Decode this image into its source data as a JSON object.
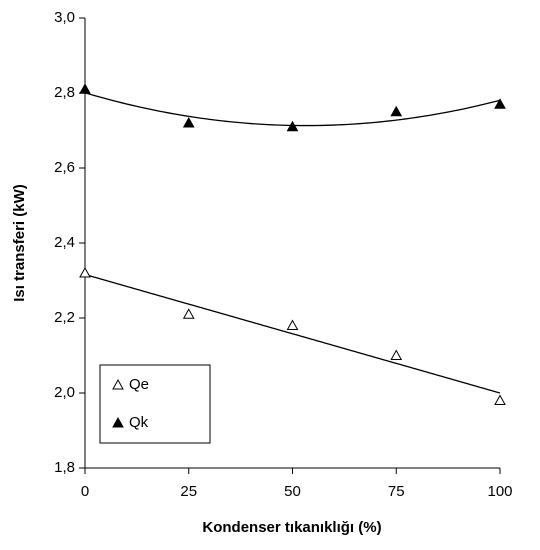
{
  "chart_data": {
    "type": "scatter",
    "xlabel": "Kondenser tıkanıklığı (%)",
    "ylabel": "Isı transferi (kW)",
    "xlim": [
      0,
      100
    ],
    "xticks": [
      0,
      25,
      50,
      75,
      100
    ],
    "ylim": [
      1.8,
      3.0
    ],
    "yticks": [
      {
        "value": 1.8,
        "label": "1,8"
      },
      {
        "value": 2.0,
        "label": "2,0"
      },
      {
        "value": 2.2,
        "label": "2,2"
      },
      {
        "value": 2.4,
        "label": "2,4"
      },
      {
        "value": 2.6,
        "label": "2,6"
      },
      {
        "value": 2.8,
        "label": "2,8"
      },
      {
        "value": 3.0,
        "label": "3,0"
      }
    ],
    "grid": false,
    "legend": "lower left",
    "series": [
      {
        "name": "Qe",
        "color": "#000000",
        "marker": "open-triangle",
        "trendline": "linear",
        "x": [
          0,
          25,
          50,
          75,
          100
        ],
        "values": [
          2.32,
          2.21,
          2.18,
          2.1,
          1.98
        ]
      },
      {
        "name": "Qk",
        "color": "#000000",
        "marker": "filled-triangle",
        "trendline": "polynomial",
        "x": [
          0,
          25,
          50,
          75,
          100
        ],
        "values": [
          2.81,
          2.72,
          2.71,
          2.75,
          2.77
        ]
      }
    ]
  }
}
